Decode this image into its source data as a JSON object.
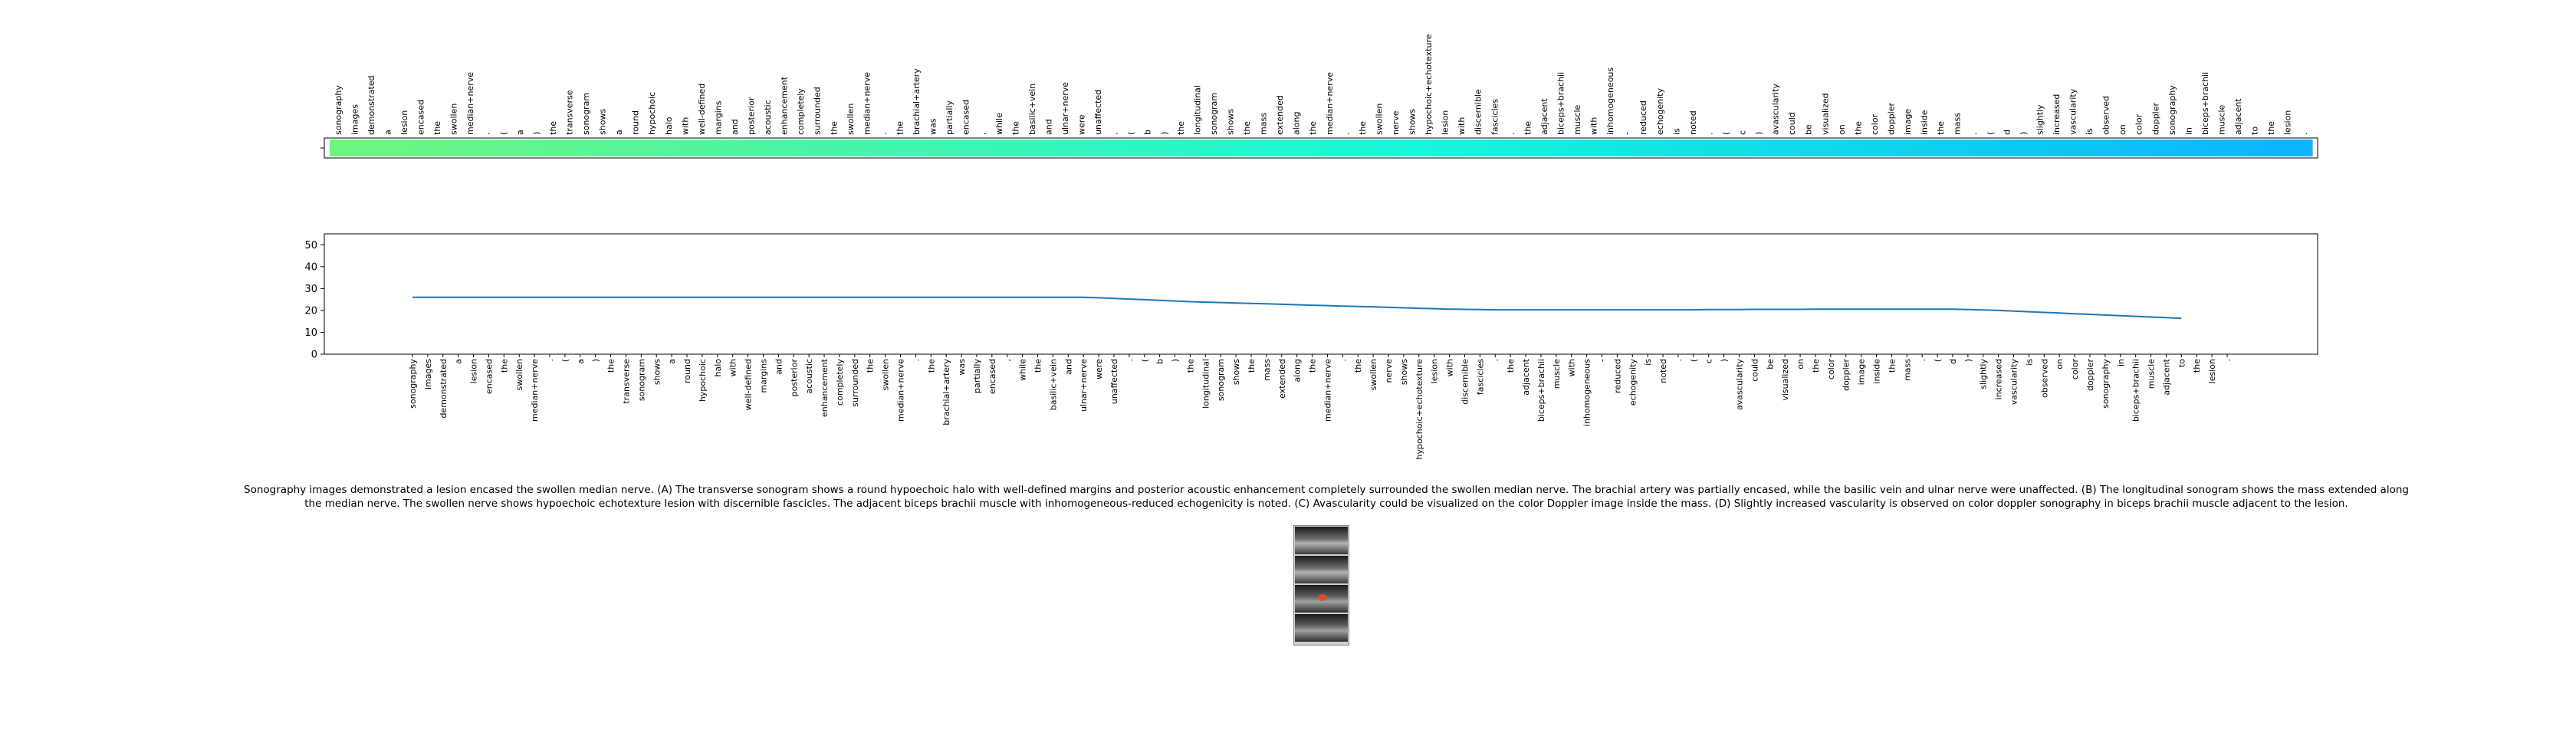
{
  "tokens": [
    "sonography",
    "images",
    "demonstrated",
    "a",
    "lesion",
    "encased",
    "the",
    "swollen",
    "median+nerve",
    ".",
    "(",
    "a",
    ")",
    "the",
    "transverse",
    "sonogram",
    "shows",
    "a",
    "round",
    "hypochoic",
    "halo",
    "with",
    "well-defined",
    "margins",
    "and",
    "posterior",
    "acoustic",
    "enhancement",
    "completely",
    "surrounded",
    "the",
    "swollen",
    "median+nerve",
    ".",
    "the",
    "brachial+artery",
    "was",
    "partially",
    "encased",
    ",",
    "while",
    "the",
    "basilic+vein",
    "and",
    "ulnar+nerve",
    "were",
    "unaffected",
    ".",
    "(",
    "b",
    ")",
    "the",
    "longitudinal",
    "sonogram",
    "shows",
    "the",
    "mass",
    "extended",
    "along",
    "the",
    "median+nerve",
    ".",
    "the",
    "swollen",
    "nerve",
    "shows",
    "hypochoic+echotexture",
    "lesion",
    "with",
    "discernible",
    "fascicles",
    ".",
    "the",
    "adjacent",
    "biceps+brachii",
    "muscle",
    "with",
    "inhomogeneous",
    "-",
    "reduced",
    "echogenity",
    "is",
    "noted",
    ".",
    "(",
    "c",
    ")",
    "avascularity",
    "could",
    "be",
    "visualized",
    "on",
    "the",
    "color",
    "doppler",
    "image",
    "inside",
    "the",
    "mass",
    ".",
    "(",
    "d",
    ")",
    "slightly",
    "increased",
    "vascularity",
    "is",
    "observed",
    "on",
    "color",
    "doppler",
    "sonography",
    "in",
    "biceps+brachii",
    "muscle",
    "adjacent",
    "to",
    "the",
    "lesion",
    "."
  ],
  "chart_data": [
    {
      "type": "heatmap",
      "title": "",
      "rows": 1,
      "colors": {
        "start": "#6ff57f",
        "mid": "#17f6da",
        "end": "#0ab4ff"
      },
      "categories_ref": "tokens"
    },
    {
      "type": "line",
      "title": "",
      "xlabel": "",
      "ylabel": "",
      "ylim": [
        0,
        55
      ],
      "yticks": [
        0,
        10,
        20,
        30,
        40,
        50
      ],
      "categories_ref": "tokens",
      "line_color": "#1f77b4",
      "series": [
        {
          "values": [
            26,
            26,
            26,
            26,
            26,
            26,
            26,
            26,
            26,
            26,
            26,
            26,
            26,
            26,
            26,
            26,
            26,
            26,
            26,
            26,
            26,
            26,
            26,
            26,
            26,
            26,
            26,
            26,
            26,
            26,
            26,
            26,
            26,
            26,
            26,
            26,
            26,
            26,
            26,
            26,
            26,
            26,
            26,
            26,
            26,
            25.8,
            25.5,
            25.2,
            24.9,
            24.6,
            24.3,
            24,
            23.8,
            23.6,
            23.4,
            23.2,
            23,
            22.8,
            22.6,
            22.4,
            22.2,
            22,
            21.8,
            21.6,
            21.4,
            21.2,
            21,
            20.8,
            20.6,
            20.5,
            20.4,
            20.3,
            20.3,
            20.3,
            20.3,
            20.3,
            20.3,
            20.3,
            20.3,
            20.3,
            20.3,
            20.3,
            20.3,
            20.3,
            20.3,
            20.4,
            20.4,
            20.4,
            20.5,
            20.5,
            20.5,
            20.5,
            20.6,
            20.6,
            20.6,
            20.6,
            20.6,
            20.6,
            20.6,
            20.6,
            20.6,
            20.6,
            20.4,
            20.2,
            20,
            19.7,
            19.4,
            19.1,
            18.8,
            18.5,
            18.2,
            17.9,
            17.6,
            17.3,
            17,
            16.7,
            16.4
          ]
        }
      ]
    }
  ],
  "caption": {
    "line1": "Sonography images demonstrated a lesion encased the swollen median nerve. (A) The transverse sonogram shows a round hypoechoic halo with well-defined margins and posterior acoustic enhancement completely surrounded the swollen median nerve. The brachial artery was partially encased, while the basilic vein and ulnar nerve were unaffected. (B) The longitudinal sonogram shows the mass extended along",
    "line2": "the median nerve. The swollen nerve shows hypoechoic echotexture lesion with discernible fascicles. The adjacent biceps brachii muscle with inhomogeneous-reduced echogenicity is noted. (C) Avascularity could be visualized on the color Doppler image inside the mass. (D) Slightly increased vascularity is observed on color doppler sonography in biceps brachii muscle adjacent to the lesion."
  }
}
